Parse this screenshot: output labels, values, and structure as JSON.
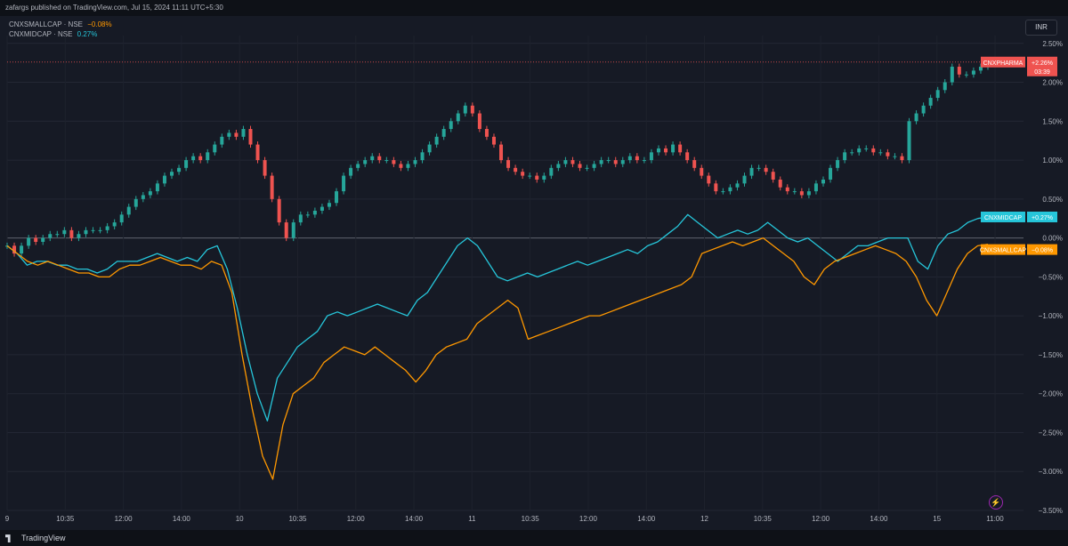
{
  "header": {
    "published": "zafargs published on TradingView.com, Jul 15, 2024 11:11 UTC+5:30"
  },
  "legend": [
    {
      "name": "CNXSMALLCAP · NSE",
      "value": "−0.08%"
    },
    {
      "name": "CNXMIDCAP · NSE",
      "value": "0.27%"
    }
  ],
  "currency_button": "INR",
  "footer": {
    "brand": "TradingView"
  },
  "colors": {
    "background": "#161a25",
    "pharma_up": "#26a69a",
    "pharma_down": "#ef5350",
    "smallcap": "#ff9800",
    "midcap": "#26c6da"
  },
  "chart_data": {
    "type": "line",
    "x_ticks": [
      "9",
      "10:35",
      "12:00",
      "14:00",
      "10",
      "10:35",
      "12:00",
      "14:00",
      "11",
      "10:35",
      "12:00",
      "14:00",
      "12",
      "10:35",
      "12:00",
      "14:00",
      "15",
      "11:00"
    ],
    "y_ticks": [
      "2.50%",
      "2.00%",
      "1.50%",
      "1.00%",
      "0.50%",
      "0.00%",
      "−0.50%",
      "−1.00%",
      "−1.50%",
      "−2.00%",
      "−2.50%",
      "−3.00%",
      "−3.50%"
    ],
    "ylim": [
      -3.5,
      2.6
    ],
    "series": [
      {
        "name": "CNXPHARMA",
        "style": "candles",
        "last_label": "+2.26%",
        "countdown": "03:39",
        "values": [
          -0.1,
          -0.2,
          -0.1,
          0.0,
          -0.05,
          0.0,
          0.05,
          0.05,
          0.1,
          0.0,
          0.05,
          0.1,
          0.1,
          0.1,
          0.15,
          0.2,
          0.3,
          0.4,
          0.5,
          0.55,
          0.6,
          0.7,
          0.8,
          0.85,
          0.9,
          1.0,
          1.05,
          1.0,
          1.1,
          1.2,
          1.3,
          1.35,
          1.3,
          1.4,
          1.2,
          1.0,
          0.8,
          0.5,
          0.2,
          0.0,
          0.2,
          0.3,
          0.3,
          0.35,
          0.4,
          0.45,
          0.6,
          0.8,
          0.9,
          0.95,
          1.0,
          1.05,
          1.0,
          1.0,
          0.95,
          0.9,
          0.95,
          1.0,
          1.1,
          1.2,
          1.3,
          1.4,
          1.5,
          1.6,
          1.7,
          1.6,
          1.4,
          1.3,
          1.2,
          1.0,
          0.9,
          0.85,
          0.8,
          0.8,
          0.75,
          0.8,
          0.9,
          0.95,
          1.0,
          0.95,
          0.9,
          0.9,
          0.95,
          1.0,
          1.0,
          0.95,
          1.0,
          1.05,
          1.0,
          1.0,
          1.1,
          1.15,
          1.1,
          1.2,
          1.1,
          1.0,
          0.9,
          0.8,
          0.7,
          0.6,
          0.6,
          0.65,
          0.7,
          0.8,
          0.9,
          0.9,
          0.85,
          0.75,
          0.65,
          0.6,
          0.6,
          0.55,
          0.6,
          0.7,
          0.75,
          0.9,
          1.0,
          1.1,
          1.1,
          1.15,
          1.15,
          1.1,
          1.1,
          1.05,
          1.05,
          1.0,
          1.5,
          1.6,
          1.7,
          1.8,
          1.9,
          2.0,
          2.2,
          2.1,
          2.1,
          2.15,
          2.2,
          2.26
        ],
        "color": "#26a69a"
      },
      {
        "name": "CNXMIDCAP",
        "last_label": "+0.27%",
        "values": [
          -0.1,
          -0.2,
          -0.35,
          -0.3,
          -0.3,
          -0.35,
          -0.35,
          -0.4,
          -0.4,
          -0.45,
          -0.4,
          -0.3,
          -0.3,
          -0.3,
          -0.25,
          -0.2,
          -0.25,
          -0.3,
          -0.25,
          -0.3,
          -0.15,
          -0.1,
          -0.4,
          -0.9,
          -1.5,
          -2.0,
          -2.35,
          -1.8,
          -1.6,
          -1.4,
          -1.3,
          -1.2,
          -1.0,
          -0.95,
          -1.0,
          -0.95,
          -0.9,
          -0.85,
          -0.9,
          -0.95,
          -1.0,
          -0.8,
          -0.7,
          -0.5,
          -0.3,
          -0.1,
          0.0,
          -0.1,
          -0.3,
          -0.5,
          -0.55,
          -0.5,
          -0.45,
          -0.5,
          -0.45,
          -0.4,
          -0.35,
          -0.3,
          -0.35,
          -0.3,
          -0.25,
          -0.2,
          -0.15,
          -0.2,
          -0.1,
          -0.05,
          0.05,
          0.15,
          0.3,
          0.2,
          0.1,
          0.0,
          0.05,
          0.1,
          0.05,
          0.1,
          0.2,
          0.1,
          0.0,
          -0.05,
          0.0,
          -0.1,
          -0.2,
          -0.3,
          -0.2,
          -0.1,
          -0.1,
          -0.05,
          0.0,
          0.0,
          0.0,
          -0.3,
          -0.4,
          -0.1,
          0.05,
          0.1,
          0.2,
          0.25,
          0.27
        ]
      },
      {
        "name": "CNXSMALLCAP",
        "last_label": "−0.08%",
        "values": [
          -0.1,
          -0.2,
          -0.3,
          -0.35,
          -0.3,
          -0.35,
          -0.4,
          -0.45,
          -0.45,
          -0.5,
          -0.5,
          -0.4,
          -0.35,
          -0.35,
          -0.3,
          -0.25,
          -0.3,
          -0.35,
          -0.35,
          -0.4,
          -0.3,
          -0.35,
          -0.7,
          -1.5,
          -2.2,
          -2.8,
          -3.1,
          -2.4,
          -2.0,
          -1.9,
          -1.8,
          -1.6,
          -1.5,
          -1.4,
          -1.45,
          -1.5,
          -1.4,
          -1.5,
          -1.6,
          -1.7,
          -1.85,
          -1.7,
          -1.5,
          -1.4,
          -1.35,
          -1.3,
          -1.1,
          -1.0,
          -0.9,
          -0.8,
          -0.9,
          -1.3,
          -1.25,
          -1.2,
          -1.15,
          -1.1,
          -1.05,
          -1.0,
          -1.0,
          -0.95,
          -0.9,
          -0.85,
          -0.8,
          -0.75,
          -0.7,
          -0.65,
          -0.6,
          -0.5,
          -0.2,
          -0.15,
          -0.1,
          -0.05,
          -0.1,
          -0.05,
          0.0,
          -0.1,
          -0.2,
          -0.3,
          -0.5,
          -0.6,
          -0.4,
          -0.3,
          -0.25,
          -0.2,
          -0.15,
          -0.1,
          -0.15,
          -0.2,
          -0.3,
          -0.5,
          -0.8,
          -1.0,
          -0.7,
          -0.4,
          -0.2,
          -0.1,
          -0.08
        ]
      }
    ]
  }
}
